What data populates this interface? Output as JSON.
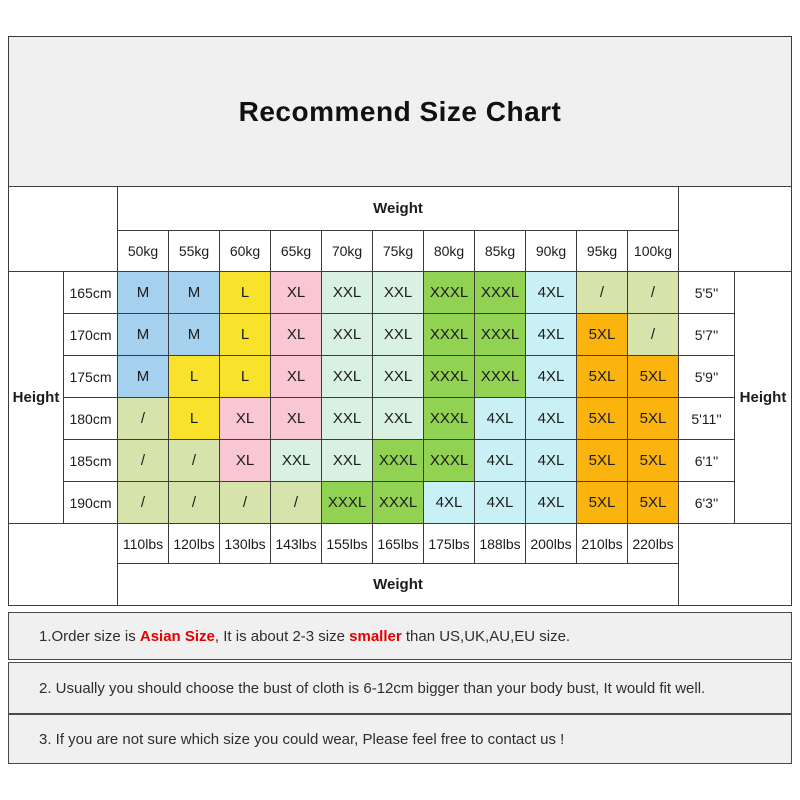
{
  "title": "Recommend Size Chart",
  "table": {
    "weight_header": "Weight",
    "weight_footer": "Weight",
    "height_label_left": "Height",
    "height_label_right": "Height",
    "kg_columns": [
      "50kg",
      "55kg",
      "60kg",
      "65kg",
      "70kg",
      "75kg",
      "80kg",
      "85kg",
      "90kg",
      "95kg",
      "100kg"
    ],
    "lbs_columns": [
      "110lbs",
      "120lbs",
      "130lbs",
      "143lbs",
      "155lbs",
      "165lbs",
      "175lbs",
      "188lbs",
      "200lbs",
      "210lbs",
      "220lbs"
    ],
    "colors": {
      "blue": "#a5d1ee",
      "yellow": "#f8e22b",
      "pink": "#f9c6d3",
      "mint": "#d9f1e0",
      "green": "#92d253",
      "cyan": "#c9f0f5",
      "lyg": "#d6e4ac",
      "orange": "#fbb40d"
    },
    "rows": [
      {
        "cm": "165cm",
        "ft": "5'5''",
        "cells": [
          {
            "size": "M",
            "color": "blue"
          },
          {
            "size": "M",
            "color": "blue"
          },
          {
            "size": "L",
            "color": "yellow"
          },
          {
            "size": "XL",
            "color": "pink"
          },
          {
            "size": "XXL",
            "color": "mint"
          },
          {
            "size": "XXL",
            "color": "mint"
          },
          {
            "size": "XXXL",
            "color": "green"
          },
          {
            "size": "XXXL",
            "color": "green"
          },
          {
            "size": "4XL",
            "color": "cyan"
          },
          {
            "size": "/",
            "color": "lyg"
          },
          {
            "size": "/",
            "color": "lyg"
          }
        ]
      },
      {
        "cm": "170cm",
        "ft": "5'7''",
        "cells": [
          {
            "size": "M",
            "color": "blue"
          },
          {
            "size": "M",
            "color": "blue"
          },
          {
            "size": "L",
            "color": "yellow"
          },
          {
            "size": "XL",
            "color": "pink"
          },
          {
            "size": "XXL",
            "color": "mint"
          },
          {
            "size": "XXL",
            "color": "mint"
          },
          {
            "size": "XXXL",
            "color": "green"
          },
          {
            "size": "XXXL",
            "color": "green"
          },
          {
            "size": "4XL",
            "color": "cyan"
          },
          {
            "size": "5XL",
            "color": "orange"
          },
          {
            "size": "/",
            "color": "lyg"
          }
        ]
      },
      {
        "cm": "175cm",
        "ft": "5'9''",
        "cells": [
          {
            "size": "M",
            "color": "blue"
          },
          {
            "size": "L",
            "color": "yellow"
          },
          {
            "size": "L",
            "color": "yellow"
          },
          {
            "size": "XL",
            "color": "pink"
          },
          {
            "size": "XXL",
            "color": "mint"
          },
          {
            "size": "XXL",
            "color": "mint"
          },
          {
            "size": "XXXL",
            "color": "green"
          },
          {
            "size": "XXXL",
            "color": "green"
          },
          {
            "size": "4XL",
            "color": "cyan"
          },
          {
            "size": "5XL",
            "color": "orange"
          },
          {
            "size": "5XL",
            "color": "orange"
          }
        ]
      },
      {
        "cm": "180cm",
        "ft": "5'11''",
        "cells": [
          {
            "size": "/",
            "color": "lyg"
          },
          {
            "size": "L",
            "color": "yellow"
          },
          {
            "size": "XL",
            "color": "pink"
          },
          {
            "size": "XL",
            "color": "pink"
          },
          {
            "size": "XXL",
            "color": "mint"
          },
          {
            "size": "XXL",
            "color": "mint"
          },
          {
            "size": "XXXL",
            "color": "green"
          },
          {
            "size": "4XL",
            "color": "cyan"
          },
          {
            "size": "4XL",
            "color": "cyan"
          },
          {
            "size": "5XL",
            "color": "orange"
          },
          {
            "size": "5XL",
            "color": "orange"
          }
        ]
      },
      {
        "cm": "185cm",
        "ft": "6'1''",
        "cells": [
          {
            "size": "/",
            "color": "lyg"
          },
          {
            "size": "/",
            "color": "lyg"
          },
          {
            "size": "XL",
            "color": "pink"
          },
          {
            "size": "XXL",
            "color": "mint"
          },
          {
            "size": "XXL",
            "color": "mint"
          },
          {
            "size": "XXXL",
            "color": "green"
          },
          {
            "size": "XXXL",
            "color": "green"
          },
          {
            "size": "4XL",
            "color": "cyan"
          },
          {
            "size": "4XL",
            "color": "cyan"
          },
          {
            "size": "5XL",
            "color": "orange"
          },
          {
            "size": "5XL",
            "color": "orange"
          }
        ]
      },
      {
        "cm": "190cm",
        "ft": "6'3''",
        "cells": [
          {
            "size": "/",
            "color": "lyg"
          },
          {
            "size": "/",
            "color": "lyg"
          },
          {
            "size": "/",
            "color": "lyg"
          },
          {
            "size": "/",
            "color": "lyg"
          },
          {
            "size": "XXXL",
            "color": "green"
          },
          {
            "size": "XXXL",
            "color": "green"
          },
          {
            "size": "4XL",
            "color": "cyan"
          },
          {
            "size": "4XL",
            "color": "cyan"
          },
          {
            "size": "4XL",
            "color": "cyan"
          },
          {
            "size": "5XL",
            "color": "orange"
          },
          {
            "size": "5XL",
            "color": "orange"
          }
        ]
      }
    ]
  },
  "notes": [
    {
      "segments": [
        {
          "text": "1.Order size is ",
          "highlight": false
        },
        {
          "text": "Asian Size",
          "highlight": true
        },
        {
          "text": ", It is about 2-3 size ",
          "highlight": false
        },
        {
          "text": "smaller",
          "highlight": true
        },
        {
          "text": " than US,UK,AU,EU size.",
          "highlight": false
        }
      ]
    },
    {
      "segments": [
        {
          "text": "2. Usually you should choose the bust of cloth is 6-12cm bigger than your body bust, It would fit well.",
          "highlight": false
        }
      ]
    },
    {
      "segments": [
        {
          "text": "3. If you are not sure which size you could wear, Please feel free to contact us !",
          "highlight": false
        }
      ]
    }
  ],
  "highlight_color": "#e60000"
}
